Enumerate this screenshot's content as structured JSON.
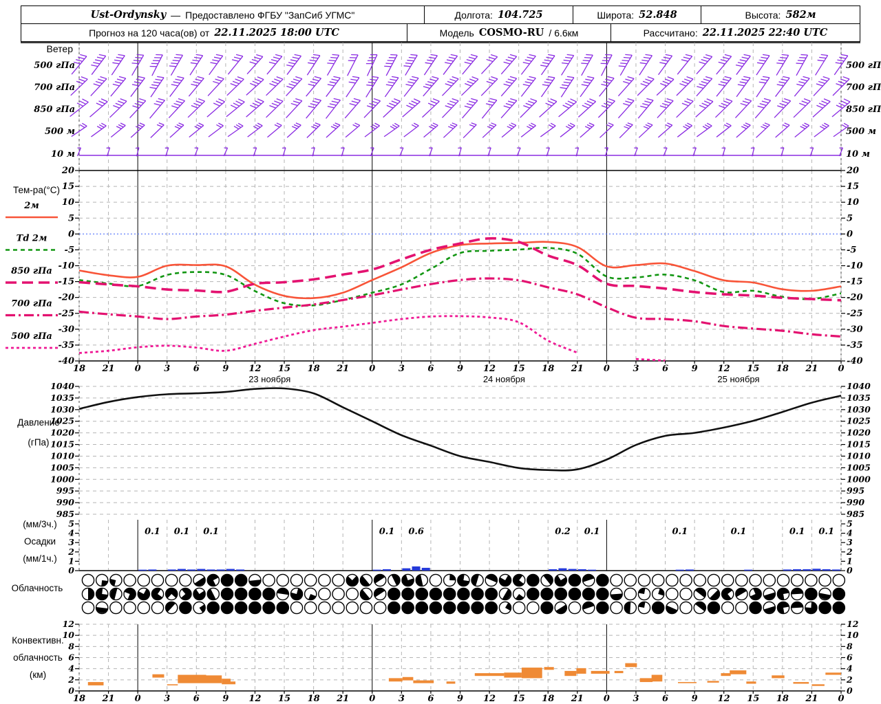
{
  "header": {
    "station": "Ust-Ordynsky",
    "dash": "—",
    "provider": "Предоставлено ФГБУ \"ЗапСиб УГМС\"",
    "lon_label": "Долгота:",
    "lon": "104.725",
    "lat_label": "Широта:",
    "lat": "52.848",
    "alt_label": "Высота:",
    "alt": "582м",
    "forecast_prefix": "Прогноз на 120 часа(ов) от",
    "forecast_time": "22.11.2025 18:00 UTC",
    "model_label": "Модель",
    "model_name": "COSMO-RU",
    "model_res": "/ 6.6км",
    "calc_label": "Рассчитано:",
    "calc_time": "22.11.2025 22:40 UTC"
  },
  "panels": {
    "wind": {
      "title": "Ветер"
    },
    "temp": {
      "title": "Тем-ра(°C)"
    },
    "pressure": {
      "label1": "Давление",
      "label2": "(гПа)"
    },
    "precip": {
      "label1": "(мм/3ч.)",
      "label2": "Осадки",
      "label3": "(мм/1ч.)"
    },
    "cloud": {
      "label": "Облачность"
    },
    "conv": {
      "label1": "Конвективн.",
      "label2": "облачность",
      "label3": "(км)"
    }
  },
  "colors": {
    "wind_purple": "#8a2be2",
    "t2m_red": "#f85438",
    "td_green": "#129612",
    "pink_850_700": "#e31270",
    "pink_500": "#ef1a95",
    "pressure_black": "#111111",
    "precip_blue": "#2439d8",
    "conv_orange": "#ef8a35",
    "grid_gray": "#b4b4b4",
    "zero_line_blue": "#4d6ffb",
    "day_line_black": "#000000"
  },
  "axes": {
    "temp_ticks": [
      20,
      15,
      10,
      5,
      0,
      -5,
      -10,
      -15,
      -20,
      -25,
      -30,
      -35,
      -40
    ],
    "pressure_ticks": [
      1040,
      1035,
      1030,
      1025,
      1020,
      1015,
      1010,
      1005,
      1000,
      995,
      990,
      985
    ],
    "precip_ticks": [
      5,
      4,
      3,
      2,
      1,
      0
    ],
    "conv_ticks": [
      12,
      10,
      8,
      6,
      4,
      2,
      0
    ],
    "hour_labels": [
      "18",
      "21",
      "0",
      "3",
      "6",
      "9",
      "12",
      "15",
      "18",
      "21",
      "0",
      "3",
      "6",
      "9",
      "12",
      "15",
      "18",
      "21",
      "0",
      "3",
      "6",
      "9",
      "12",
      "15",
      "18",
      "21",
      "0"
    ],
    "dates": [
      {
        "label": "23 ноября",
        "x_hour": 19.5
      },
      {
        "label": "24 ноября",
        "x_hour": 43.5
      },
      {
        "label": "25 ноября",
        "x_hour": 67.5
      }
    ]
  },
  "wind": {
    "levels": [
      "500 гПа",
      "700 гПа",
      "850 гПа",
      "500 м",
      "10 м"
    ],
    "rows": [
      {
        "level": "500 гПа",
        "angles": [
          50,
          53,
          56,
          60,
          63,
          60,
          57,
          54,
          51,
          48,
          50,
          53,
          57,
          60,
          63,
          65,
          62,
          59,
          56,
          53,
          50,
          47,
          49,
          52,
          55,
          58,
          61,
          63,
          60,
          57,
          54,
          51,
          48,
          50,
          53,
          56,
          59,
          61,
          58,
          55
        ],
        "feathers": [
          4,
          5,
          4,
          4,
          5,
          5,
          4,
          4,
          3,
          4,
          4,
          5,
          4,
          4,
          3,
          4,
          5,
          5,
          4,
          4,
          4,
          3,
          4,
          4,
          5,
          4,
          4,
          4,
          5,
          4,
          4,
          3,
          4,
          4,
          5,
          4,
          4,
          4,
          3,
          4
        ]
      },
      {
        "level": "700 гПа",
        "angles": [
          44,
          47,
          50,
          53,
          56,
          53,
          50,
          47,
          44,
          42,
          44,
          47,
          50,
          53,
          56,
          58,
          55,
          52,
          49,
          46,
          44,
          46,
          49,
          52,
          55,
          57,
          54,
          51,
          48,
          45,
          43,
          45,
          48,
          51,
          54,
          56,
          53,
          50,
          47,
          45
        ],
        "feathers": [
          3,
          4,
          4,
          4,
          5,
          4,
          4,
          3,
          4,
          4,
          4,
          5,
          4,
          4,
          3,
          4,
          4,
          4,
          5,
          4,
          4,
          3,
          4,
          4,
          4,
          5,
          4,
          4,
          3,
          4,
          4,
          4,
          5,
          4,
          4,
          3,
          4,
          4,
          4,
          4
        ]
      },
      {
        "level": "850 гПа",
        "angles": [
          38,
          41,
          44,
          47,
          50,
          47,
          44,
          41,
          39,
          41,
          44,
          47,
          50,
          52,
          49,
          46,
          43,
          41,
          43,
          46,
          49,
          51,
          48,
          45,
          42,
          40,
          42,
          45,
          48,
          50,
          47,
          44,
          42,
          44,
          47,
          49,
          46,
          44,
          42,
          40
        ],
        "feathers": [
          3,
          3,
          4,
          4,
          3,
          4,
          4,
          3,
          4,
          4,
          4,
          3,
          4,
          4,
          3,
          4,
          4,
          4,
          3,
          4,
          4,
          3,
          4,
          4,
          3,
          4,
          4,
          4,
          3,
          4,
          4,
          3,
          4,
          4,
          3,
          4,
          4,
          3,
          4,
          4
        ]
      },
      {
        "level": "500 м",
        "angles": [
          34,
          36,
          39,
          42,
          44,
          42,
          39,
          37,
          35,
          37,
          40,
          42,
          44,
          42,
          40,
          37,
          35,
          37,
          40,
          43,
          45,
          43,
          40,
          38,
          36,
          38,
          41,
          43,
          45,
          43,
          41,
          38,
          36,
          38,
          41,
          43,
          41,
          39,
          37,
          35
        ],
        "feathers": [
          2,
          3,
          3,
          3,
          2,
          3,
          3,
          2,
          3,
          3,
          2,
          3,
          3,
          3,
          2,
          3,
          3,
          2,
          3,
          3,
          2,
          3,
          3,
          3,
          2,
          3,
          3,
          2,
          3,
          3,
          2,
          3,
          3,
          2,
          3,
          3,
          2,
          3,
          3,
          2
        ]
      },
      {
        "level": "10 м",
        "angles": [
          68,
          72,
          75,
          72,
          69,
          66,
          70,
          73,
          76,
          72,
          69,
          67,
          70,
          74,
          71,
          68,
          71,
          75,
          72,
          69,
          67,
          70,
          73,
          76,
          72,
          70,
          68
        ],
        "feathers": [
          1,
          1,
          1,
          1,
          1,
          1,
          1,
          1,
          1,
          1,
          1,
          1,
          1,
          1,
          1,
          1,
          1,
          1,
          1,
          1,
          1,
          1,
          1,
          1,
          1,
          1,
          1
        ]
      }
    ]
  },
  "chart_data": [
    {
      "type": "line",
      "title": "Тем-ра(°C)",
      "ylabel": "°C",
      "ylim": [
        -40,
        20
      ],
      "x_start": "22.11 18:00 UTC",
      "x_step_hours": 3,
      "series": [
        {
          "name": "2м",
          "style": "solid",
          "color": "#f85438",
          "values": [
            -11.5,
            -13.0,
            -13.5,
            -10.0,
            -9.8,
            -10.2,
            -16.0,
            -19.5,
            -20.2,
            -18.5,
            -14.5,
            -10.5,
            -6.0,
            -3.5,
            -3.0,
            -2.8,
            -2.5,
            -4.1,
            -10.2,
            -9.8,
            -9.3,
            -11.7,
            -14.6,
            -15.3,
            -17.4,
            -17.9,
            -16.5
          ]
        },
        {
          "name": "Td 2м",
          "style": "dashed",
          "color": "#129612",
          "values": [
            -14.5,
            -15.6,
            -16.4,
            -12.9,
            -12.0,
            -12.9,
            -18.0,
            -21.8,
            -22.5,
            -20.8,
            -18.5,
            -15.9,
            -11.0,
            -6.0,
            -5.3,
            -4.9,
            -4.4,
            -6.2,
            -13.4,
            -13.7,
            -12.8,
            -14.6,
            -18.3,
            -17.9,
            -19.8,
            -20.5,
            -18.7
          ]
        },
        {
          "name": "850 гПа",
          "style": "longdash",
          "color": "#e31270",
          "values": [
            -15.2,
            -15.9,
            -16.5,
            -17.5,
            -17.8,
            -18.2,
            -15.7,
            -15.2,
            -14.3,
            -12.8,
            -11.2,
            -8.0,
            -5.0,
            -3.0,
            -1.4,
            -2.5,
            -6.8,
            -9.8,
            -15.7,
            -16.4,
            -17.2,
            -18.3,
            -19.0,
            -19.4,
            -20.1,
            -20.5,
            -20.9
          ]
        },
        {
          "name": "700 гПа",
          "style": "dashdot",
          "color": "#e31270",
          "values": [
            -24.5,
            -25.3,
            -26.0,
            -26.8,
            -26.0,
            -25.4,
            -24.2,
            -23.2,
            -22.2,
            -20.8,
            -19.3,
            -17.5,
            -15.8,
            -14.5,
            -14.0,
            -14.6,
            -16.8,
            -19.0,
            -23.1,
            -26.4,
            -26.8,
            -27.5,
            -29.0,
            -29.8,
            -30.5,
            -31.6,
            -32.3
          ]
        },
        {
          "name": "500 гПа",
          "style": "shortdash",
          "color": "#ef1a95",
          "values": [
            -37.5,
            -36.8,
            -35.7,
            -35.2,
            -35.8,
            -36.8,
            -34.6,
            -32.3,
            -30.3,
            -29.2,
            -28.0,
            -26.8,
            -26.0,
            -25.9,
            -26.3,
            -27.8,
            -33.6,
            -37.4,
            null,
            -39.4,
            -39.9,
            null,
            null,
            null,
            null,
            null,
            null
          ]
        }
      ]
    },
    {
      "type": "line",
      "title": "Давление (гПа)",
      "ylim": [
        985,
        1040
      ],
      "x_step_hours": 3,
      "series": [
        {
          "name": "Давление",
          "style": "solid",
          "color": "#111111",
          "values": [
            1030.3,
            1033.3,
            1035.4,
            1036.6,
            1037.0,
            1037.6,
            1038.9,
            1039.1,
            1037.0,
            1031.0,
            1025.0,
            1019.0,
            1014.5,
            1010.0,
            1007.5,
            1004.9,
            1004.0,
            1004.3,
            1008.5,
            1014.8,
            1018.7,
            1020.0,
            1022.3,
            1025.2,
            1029.0,
            1033.0,
            1036.0
          ]
        }
      ]
    },
    {
      "type": "bar",
      "title": "Осадки",
      "ylim": [
        0,
        5
      ],
      "slot_hours": 3,
      "slot_values_mm_3h": [
        0,
        0,
        0.1,
        0.1,
        0.1,
        0,
        0,
        0,
        0,
        0,
        0.1,
        0.6,
        0,
        0,
        0,
        0,
        0.2,
        0.1,
        0,
        0,
        0.1,
        0,
        0.1,
        0,
        0.1,
        0.1
      ],
      "hourly_bars_mm_1h": [
        [
          6,
          0.1
        ],
        [
          7,
          0.12
        ],
        [
          9,
          0.12
        ],
        [
          10,
          0.18
        ],
        [
          11,
          0.12
        ],
        [
          12,
          0.18
        ],
        [
          13,
          0.12
        ],
        [
          14,
          0.12
        ],
        [
          15,
          0.18
        ],
        [
          16,
          0.12
        ],
        [
          30,
          0.1
        ],
        [
          31,
          0.15
        ],
        [
          33,
          0.25
        ],
        [
          34,
          0.45
        ],
        [
          35,
          0.3
        ],
        [
          48,
          0.15
        ],
        [
          49,
          0.25
        ],
        [
          50,
          0.18
        ],
        [
          51,
          0.15
        ],
        [
          52,
          0.1
        ],
        [
          61,
          0.1
        ],
        [
          62,
          0.12
        ],
        [
          68,
          0.1
        ],
        [
          72,
          0.12
        ],
        [
          73,
          0.15
        ],
        [
          74,
          0.15
        ],
        [
          75,
          0.2
        ],
        [
          76,
          0.15
        ],
        [
          77,
          0.12
        ]
      ]
    },
    {
      "type": "symbol-rows",
      "title": "Облачность",
      "note": "okta_quarters: 0=clear,1=1/4,2=1/2,3=3/4,4=overcast",
      "rows": [
        {
          "okta_quarters": [
            0,
            1,
            1,
            0,
            0,
            0,
            0,
            0,
            2,
            3,
            4,
            4,
            2,
            0,
            0,
            0,
            0,
            0,
            0,
            3,
            2,
            2,
            2,
            3,
            2,
            0,
            1,
            3,
            2,
            2,
            3,
            3,
            4,
            2,
            3,
            4,
            2,
            4,
            0,
            0,
            0,
            0,
            0,
            0,
            0,
            0,
            0,
            0,
            0,
            0,
            0,
            0,
            0,
            0,
            0
          ]
        },
        {
          "okta_quarters": [
            2,
            3,
            2,
            3,
            3,
            3,
            3,
            3,
            3,
            2,
            4,
            4,
            4,
            4,
            2,
            3,
            1,
            0,
            0,
            0,
            2,
            2,
            4,
            4,
            4,
            4,
            4,
            4,
            4,
            4,
            2,
            1,
            4,
            4,
            4,
            4,
            4,
            4,
            2,
            0,
            1,
            1,
            0,
            0,
            2,
            2,
            3,
            2,
            3,
            2,
            3,
            2,
            4,
            2,
            4
          ]
        },
        {
          "okta_quarters": [
            0,
            2,
            0,
            0,
            0,
            0,
            2,
            4,
            1,
            4,
            4,
            4,
            4,
            4,
            4,
            0,
            0,
            0,
            0,
            0,
            0,
            0,
            4,
            4,
            4,
            4,
            4,
            4,
            4,
            4,
            1,
            0,
            0,
            4,
            2,
            0,
            2,
            4,
            0,
            2,
            1,
            4,
            2,
            0,
            2,
            4,
            0,
            0,
            4,
            2,
            3,
            2,
            3,
            4,
            4
          ]
        }
      ]
    },
    {
      "type": "range-bar",
      "title": "Конвективная облачность (км)",
      "ylim": [
        0,
        12
      ],
      "bars_h0_h1_lo_hi_km": [
        [
          0.9,
          2.5,
          1.0,
          1.6
        ],
        [
          7.5,
          8.7,
          2.4,
          3.0
        ],
        [
          9.0,
          10.1,
          1.0,
          1.2
        ],
        [
          10.1,
          13.0,
          1.4,
          2.9
        ],
        [
          13.0,
          14.6,
          1.4,
          2.8
        ],
        [
          14.6,
          15.5,
          1.2,
          2.2
        ],
        [
          15.5,
          16.0,
          1.2,
          1.7
        ],
        [
          31.7,
          33.1,
          1.7,
          2.3
        ],
        [
          33.1,
          34.2,
          1.9,
          2.5
        ],
        [
          34.2,
          36.3,
          1.4,
          1.9
        ],
        [
          37.6,
          38.5,
          1.3,
          1.7
        ],
        [
          40.5,
          43.5,
          2.7,
          3.2
        ],
        [
          43.5,
          45.3,
          2.4,
          3.3
        ],
        [
          45.3,
          47.4,
          2.3,
          4.2
        ],
        [
          47.6,
          48.6,
          3.8,
          4.3
        ],
        [
          49.7,
          50.9,
          2.7,
          3.6
        ],
        [
          50.9,
          51.9,
          3.1,
          4.1
        ],
        [
          52.4,
          54.3,
          3.1,
          3.6
        ],
        [
          54.8,
          55.7,
          3.2,
          3.6
        ],
        [
          55.9,
          57.1,
          4.3,
          5.0
        ],
        [
          57.4,
          58.7,
          1.6,
          2.3
        ],
        [
          58.6,
          59.7,
          1.7,
          2.9
        ],
        [
          61.3,
          63.2,
          1.4,
          1.6
        ],
        [
          64.3,
          65.5,
          1.5,
          1.8
        ],
        [
          65.7,
          66.7,
          2.7,
          3.2
        ],
        [
          66.6,
          68.3,
          3.0,
          3.7
        ],
        [
          68.3,
          69.3,
          1.3,
          1.7
        ],
        [
          70.9,
          72.2,
          2.3,
          2.8
        ],
        [
          73.1,
          74.7,
          1.3,
          1.6
        ],
        [
          75.0,
          76.3,
          0.9,
          1.2
        ],
        [
          76.4,
          78.0,
          2.9,
          3.3
        ]
      ]
    }
  ]
}
